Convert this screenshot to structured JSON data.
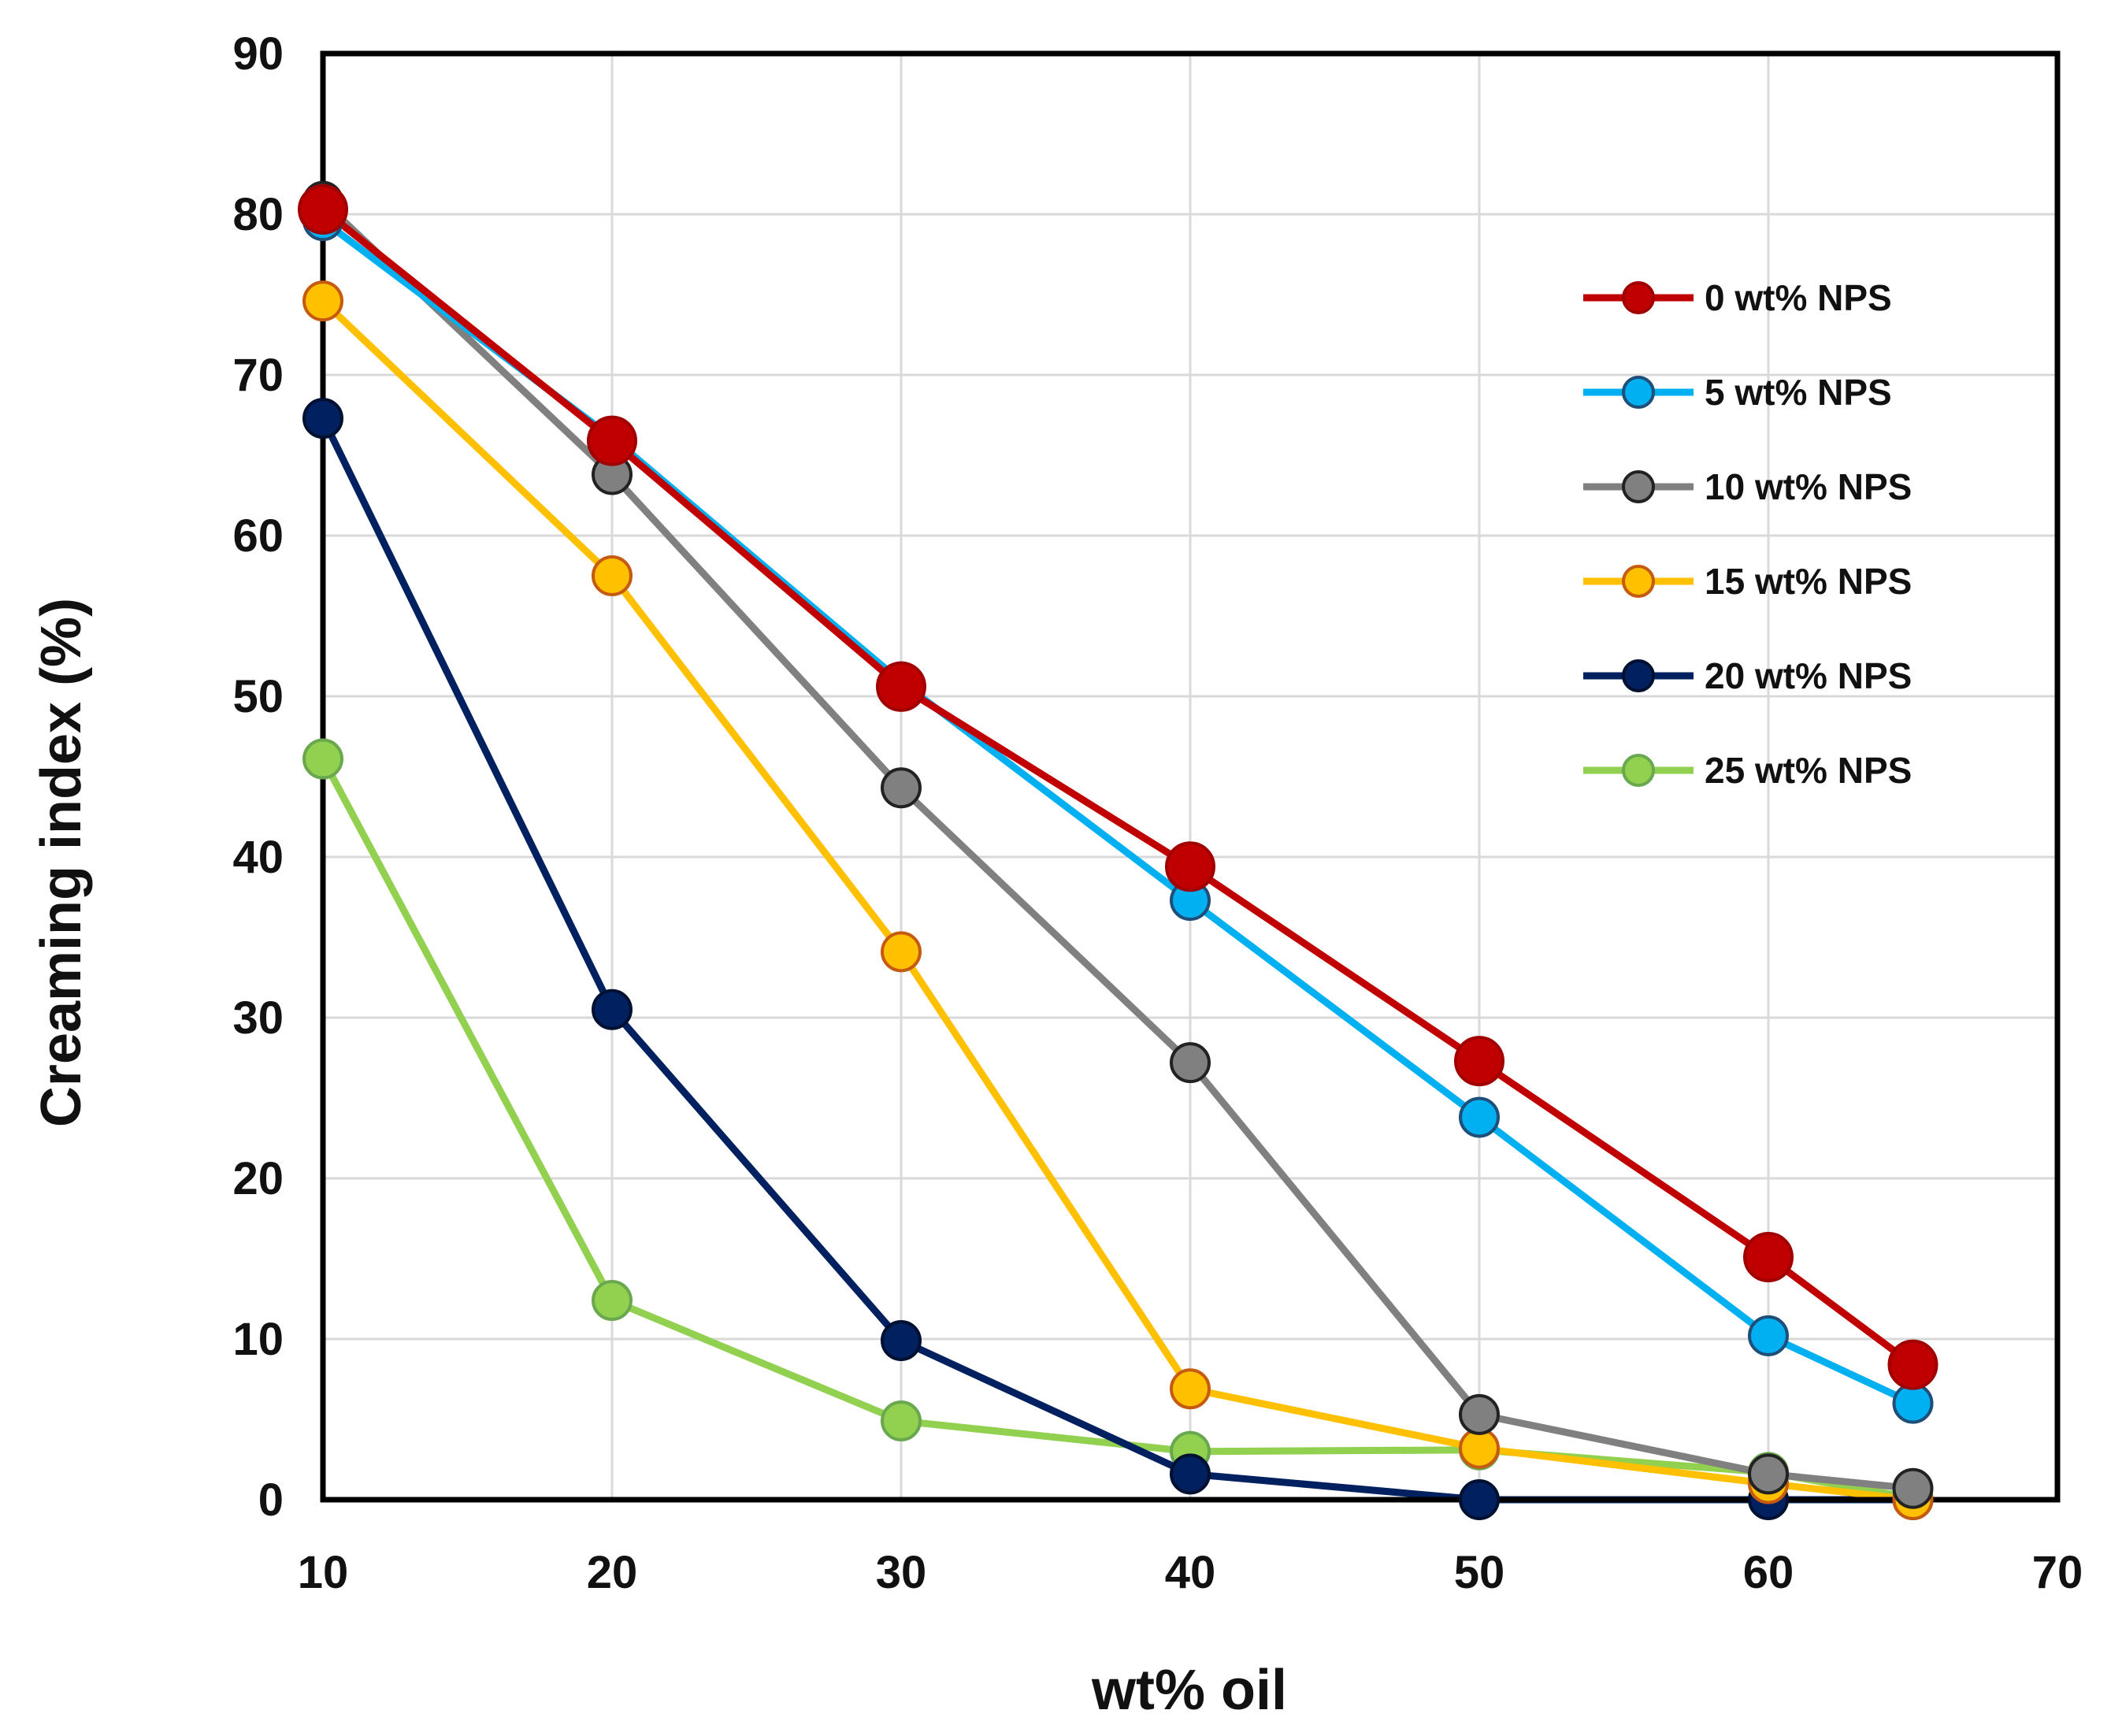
{
  "chart_data": {
    "type": "line",
    "xlabel": "wt% oil",
    "ylabel": "Creaming index (%)",
    "xlim": [
      10,
      70
    ],
    "ylim": [
      0,
      90
    ],
    "xticks": [
      10,
      20,
      30,
      40,
      50,
      60,
      70
    ],
    "yticks": [
      0,
      10,
      20,
      30,
      40,
      50,
      60,
      70,
      80,
      90
    ],
    "grid": true,
    "legend_position": "top-right",
    "series": [
      {
        "name": "0 wt% NPS",
        "color": "#C00000",
        "stroke": "#A00000",
        "x": [
          10,
          20,
          30,
          40,
          50,
          60,
          65
        ],
        "y": [
          80.3,
          65.9,
          50.6,
          39.4,
          27.3,
          15.1,
          8.4
        ]
      },
      {
        "name": "5 wt% NPS",
        "color": "#00B0F0",
        "stroke": "#1F4E79",
        "x": [
          10,
          20,
          30,
          40,
          50,
          60,
          65
        ],
        "y": [
          79.6,
          66.1,
          50.9,
          37.3,
          23.8,
          10.2,
          6.0
        ]
      },
      {
        "name": "10 wt% NPS",
        "color": "#808080",
        "stroke": "#222222",
        "x": [
          10,
          20,
          30,
          40,
          50,
          60,
          65
        ],
        "y": [
          80.8,
          63.8,
          44.3,
          27.2,
          5.3,
          1.6,
          0.7
        ]
      },
      {
        "name": "15 wt% NPS",
        "color": "#FFC000",
        "stroke": "#C55A11",
        "x": [
          10,
          20,
          30,
          40,
          50,
          60,
          65
        ],
        "y": [
          74.6,
          57.5,
          34.1,
          6.9,
          3.2,
          1.0,
          0.0
        ]
      },
      {
        "name": "20 wt% NPS",
        "color": "#002060",
        "stroke": "#001030",
        "x": [
          10,
          20,
          30,
          40,
          50,
          60,
          65
        ],
        "y": [
          67.3,
          30.5,
          9.9,
          1.6,
          0.0,
          0.0,
          0.0
        ]
      },
      {
        "name": "25 wt% NPS",
        "color": "#92D050",
        "stroke": "#6AA84F",
        "x": [
          10,
          20,
          30,
          40,
          50,
          60,
          65
        ],
        "y": [
          46.1,
          12.4,
          4.9,
          3.0,
          3.1,
          1.7,
          0.1
        ]
      }
    ]
  }
}
